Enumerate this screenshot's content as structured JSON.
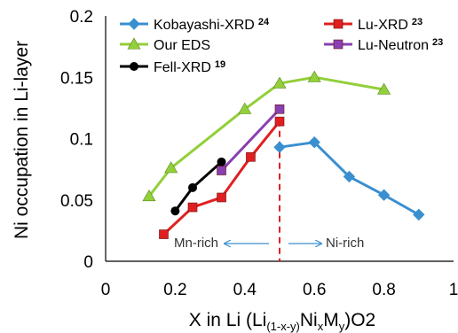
{
  "chart_data": {
    "type": "line",
    "xlabel": {
      "prefix": "X in Li (Li",
      "sub1": "(1-x-y)",
      "mid1": "Ni",
      "sub2": "x",
      "mid2": "M",
      "sub3": "y",
      "suffix": ")O2"
    },
    "ylabel": "Ni occupation in Li-layer",
    "xlim": [
      0,
      1
    ],
    "ylim": [
      0,
      0.2
    ],
    "x_ticks": [
      "0",
      "0.2",
      "0.4",
      "0.6",
      "0.8",
      "1"
    ],
    "y_ticks": [
      "0",
      "0.05",
      "0.1",
      "0.15",
      "0.2"
    ],
    "grid": false,
    "legend_position": "top",
    "series": [
      {
        "name": "Kobayashi-XRD",
        "ref": "24",
        "color": "#3a8fd0",
        "marker": "diamond",
        "points": [
          [
            0.5,
            0.093
          ],
          [
            0.6,
            0.097
          ],
          [
            0.7,
            0.069
          ],
          [
            0.8,
            0.054
          ],
          [
            0.9,
            0.038
          ]
        ]
      },
      {
        "name": "Lu-XRD",
        "ref": "23",
        "color": "#e02020",
        "marker": "square",
        "points": [
          [
            0.167,
            0.022
          ],
          [
            0.25,
            0.044
          ],
          [
            0.333,
            0.052
          ],
          [
            0.417,
            0.085
          ],
          [
            0.5,
            0.114
          ]
        ]
      },
      {
        "name": "Our EDS",
        "ref": "",
        "color": "#92cf3a",
        "marker": "triangle",
        "points": [
          [
            0.125,
            0.053
          ],
          [
            0.188,
            0.076
          ],
          [
            0.4,
            0.124
          ],
          [
            0.5,
            0.145
          ],
          [
            0.6,
            0.15
          ],
          [
            0.8,
            0.14
          ]
        ]
      },
      {
        "name": "Lu-Neutron",
        "ref": "23",
        "color": "#8a40b0",
        "marker": "square",
        "points": [
          [
            0.333,
            0.074
          ],
          [
            0.5,
            0.124
          ]
        ]
      },
      {
        "name": "Fell-XRD",
        "ref": "19",
        "color": "#000000",
        "marker": "circle",
        "points": [
          [
            0.2,
            0.041
          ],
          [
            0.25,
            0.06
          ],
          [
            0.333,
            0.081
          ]
        ]
      }
    ],
    "annotations": [
      {
        "text": "Mn-rich",
        "arrow": "left"
      },
      {
        "text": "Ni-rich",
        "arrow": "right"
      }
    ],
    "divider_line": {
      "x": 0.5,
      "style": "dashed",
      "color": "#e02020"
    }
  }
}
